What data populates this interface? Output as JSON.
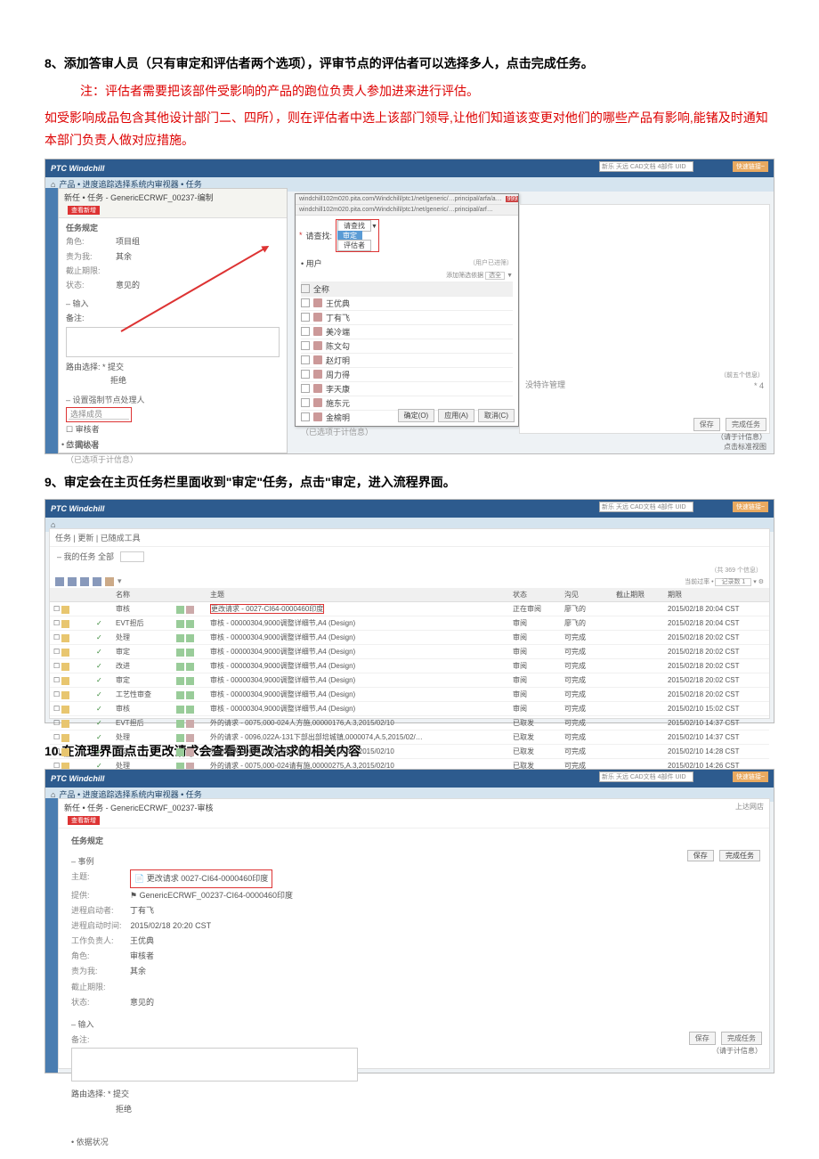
{
  "doc": {
    "step8": "8、添加答审人员（只有审定和评估者两个选项），评审节点的评估者可以选择多人，点击完成任务。",
    "note1": "注：评估者需要把该部件受影响的产品的跑位负责人参加进来进行评估。",
    "note2": "如受影响成品包含其他设计部门二、四所），则在评估者中选上该部门领导,让他们知道该变更对他们的哪些产品有影响,能锗及时通知本部门负责人做对应措施。",
    "step9": "9、审定会在主页任务栏里面收到\"审定\"任务，点击\"审定，进入流程界面。",
    "step10": "10.在流理界面点击更改请求会查看到更改沽求的相关内容"
  },
  "app": {
    "name": "PTC Windchill",
    "search_ph": "新乐 天远 CAD文档 4部件 UID",
    "rt": "快速链接~"
  },
  "s1": {
    "crumb": "产品 • 进度追踪选择系统内审视器 • 任务",
    "task_title": "新任 • 任务 - GenericECRWF_00237-编制",
    "badge": "查看新增",
    "left": {
      "sec_label": "任务规定",
      "kv": [
        [
          "角色:",
          "项目组"
        ],
        [
          "责为我:",
          "其余"
        ],
        [
          "截止期限:",
          ""
        ],
        [
          "状态:",
          "意见的"
        ]
      ],
      "input_title": "输入",
      "input_label": "备注:",
      "route_title": "路由选择:",
      "r1": "* 提交",
      "r2": "拒绝",
      "setup_title": "设置强制节点处理人",
      "tbl_h1": "选择成员",
      "tbl_r1": "审核者",
      "tbl_r2": "同级者",
      "foot": "（已选项于计信息）"
    },
    "popup": {
      "url1": "windchill102m020.pita.com/Windchill/ptc1/net/generic/…principal/arfa/a… ",
      "url2": "windchill102m020.pita.com/Windchill/ptc1/net/generic/…principal/arf…",
      "hl": "999.308",
      "find_label": "请查找:",
      "opt_label": "请查找",
      "btn1": "审定",
      "btn2": "评估者",
      "user_label": "用户",
      "added": "（用户已进筛）",
      "filter": "添加筛选依据",
      "filter2": "选全",
      "th": "全称",
      "rows": [
        "王优典",
        "丁有飞",
        "美冷端",
        "陈文勾",
        "赵灯明",
        "周力得",
        "李天康",
        "施东元",
        "金榆明"
      ],
      "foot": "（已选项于计信息）",
      "b1": "确定(O)",
      "b2": "应用(A)",
      "b3": "取消(C)"
    },
    "right": {
      "perm": "没特许管理",
      "star": "*  4"
    },
    "footer": {
      "b1": "保存",
      "b2": "完成任务",
      "t1": "（请于计信息）",
      "t2": "点击标准视图"
    }
  },
  "s2": {
    "tabs": "任务 | 更新 | 已随成工具",
    "sub": "我的任务 全部",
    "tools_icons": 6,
    "right_label": "（共 369 个信息）",
    "filter": "当前过率 • ",
    "page": "记录数 1",
    "cols": [
      "",
      "",
      "名称",
      "主题",
      "状态",
      "沟见",
      "截止期限",
      "期限"
    ],
    "red_subject": "更改请求 - 0027-CI64-0000460印度",
    "rows": [
      [
        "",
        "审核",
        "",
        "更改请求 - 0027-CI64-0000460印度",
        "正在审阅",
        "廖飞的",
        "",
        "2015/02/18 20:04 CST"
      ],
      [
        "✓",
        "EVT担后",
        "",
        "审核 - 00000304,9000调整详细节,A4 (Design)",
        "审阅",
        "廖飞的",
        "",
        "2015/02/18 20:04 CST"
      ],
      [
        "✓",
        "处理",
        "",
        "审核 - 00000304,9000调整详细节,A4 (Design)",
        "审阅",
        "可完成",
        "",
        "2015/02/18 20:02 CST"
      ],
      [
        "✓",
        "审定",
        "",
        "审核 - 00000304,9000调整详细节,A4 (Design)",
        "审阅",
        "可完成",
        "",
        "2015/02/18 20:02 CST"
      ],
      [
        "✓",
        "改进",
        "",
        "审核 - 00000304,9000调整详细节,A4 (Design)",
        "审阅",
        "可完成",
        "",
        "2015/02/18 20:02 CST"
      ],
      [
        "✓",
        "审定",
        "",
        "审核 - 00000304,9000调整详细节,A4 (Design)",
        "审阅",
        "可完成",
        "",
        "2015/02/18 20:02 CST"
      ],
      [
        "✓",
        "工艺性审查",
        "",
        "审核 - 00000304,9000调整详细节,A4 (Design)",
        "审阅",
        "可完成",
        "",
        "2015/02/18 20:02 CST"
      ],
      [
        "✓",
        "审核",
        "",
        "审核 - 00000304,9000调整详细节,A4 (Design)",
        "审阅",
        "可完成",
        "",
        "2015/02/10 15:02 CST"
      ],
      [
        "✓",
        "EVT担后",
        "",
        "外的请求 - 0075,000-024人方施,00000176,A.3,2015/02/10",
        "已取发",
        "可完成",
        "",
        "2015/02/10 14:37 CST"
      ],
      [
        "✓",
        "处理",
        "",
        "外的请求 - 0096,022A-131下部出部培城镇,0000074,A.5,2015/02/…",
        "已取发",
        "可完成",
        "",
        "2015/02/10 14:37 CST"
      ],
      [
        "✓",
        "审定",
        "",
        "外的请求 - 0075,000-024人方施,00000176,A.3,2015/02/10",
        "已取发",
        "可完成",
        "",
        "2015/02/10 14:28 CST"
      ],
      [
        "✓",
        "处理",
        "",
        "外的请求 - 0075,000-024请有施,00000275,A.3,2015/02/10",
        "已取发",
        "可完成",
        "",
        "2015/02/10 14:26 CST"
      ],
      [
        "✓",
        "审定",
        "",
        "外的请求 - 0075,000-024人方施,00000176,A.2,2015/02/10",
        "已取发",
        "可完成",
        "",
        "2015/02/10 14:26 CST"
      ]
    ]
  },
  "s3": {
    "crumb": "产品 • 进度追踪选择系统内审视器 • 任务",
    "task_title": "新任 • 任务 - GenericECRWF_00237-审核",
    "badge": "查看新增",
    "rt": "上达网店",
    "sec_label": "任务规定",
    "subj_label": "事例",
    "subj_k": "主题:",
    "subj_v": "更改请求  0027-CI64-0000460印度",
    "sub2_k": "提供:",
    "sub2_v": "GenericECRWF_00237-CI64-0000460印度",
    "kv": [
      [
        "进程启动者:",
        "丁有飞"
      ],
      [
        "进程启动时间:",
        "2015/02/18 20:20 CST"
      ],
      [
        "工作负责人:",
        "王优典"
      ],
      [
        "角色:",
        "审核者"
      ],
      [
        "责为我:",
        "其余"
      ],
      [
        "截止期限:",
        ""
      ],
      [
        "状态:",
        "意见的"
      ]
    ],
    "input_title": "输入",
    "input_label": "备注:",
    "route_title": "路由选择:",
    "r1": "* 提交",
    "r2": "拒绝",
    "proc": "• 依据状况",
    "footer": {
      "b1": "保存",
      "b2": "完成任务",
      "t1": "（请于计信息）"
    }
  }
}
